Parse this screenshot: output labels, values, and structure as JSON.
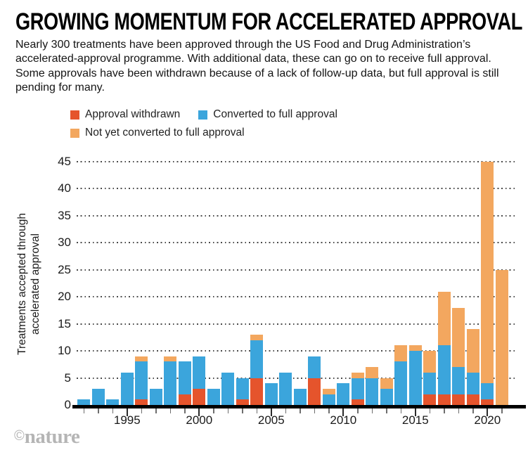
{
  "header": {
    "title": "GROWING MOMENTUM FOR ACCELERATED APPROVAL",
    "subtitle": "Nearly 300 treatments have been approved through the US Food and Drug Administration’s accelerated-approval programme. With additional data, these can go on to receive full approval. Some approvals have been withdrawn because of a lack of follow-up data, but full approval is still pending for many."
  },
  "footer": {
    "copyright_symbol": "©",
    "brand": "nature"
  },
  "chart_data": {
    "type": "bar",
    "stacked": true,
    "title": "GROWING MOMENTUM FOR ACCELERATED APPROVAL",
    "x": [
      1992,
      1993,
      1994,
      1995,
      1996,
      1997,
      1998,
      1999,
      2000,
      2001,
      2002,
      2003,
      2004,
      2005,
      2006,
      2007,
      2008,
      2009,
      2010,
      2011,
      2012,
      2013,
      2014,
      2015,
      2016,
      2017,
      2018,
      2019,
      2020,
      2021
    ],
    "series": [
      {
        "name": "Approval withdrawn",
        "color": "#E5542C",
        "values": [
          0,
          0,
          0,
          0,
          1,
          0,
          0,
          2,
          3,
          0,
          0,
          1,
          5,
          0,
          0,
          0,
          5,
          0,
          0,
          1,
          0,
          0,
          0,
          0,
          2,
          2,
          2,
          2,
          1,
          0
        ]
      },
      {
        "name": "Converted to full approval",
        "color": "#3BA5DC",
        "values": [
          1,
          3,
          1,
          6,
          7,
          3,
          8,
          6,
          6,
          3,
          6,
          4,
          7,
          4,
          6,
          3,
          4,
          2,
          4,
          4,
          5,
          3,
          8,
          10,
          4,
          9,
          5,
          4,
          3,
          0
        ]
      },
      {
        "name": "Not yet converted to full approval",
        "color": "#F3A75F",
        "values": [
          0,
          0,
          0,
          0,
          1,
          0,
          1,
          0,
          0,
          0,
          0,
          0,
          1,
          0,
          0,
          0,
          0,
          1,
          0,
          1,
          2,
          2,
          3,
          1,
          4,
          10,
          11,
          8,
          41,
          25
        ]
      }
    ],
    "ylabel": "Treatments accepted through accelerated approval",
    "ylabel_lines": [
      "Treatments accepted through",
      "accelerated approval"
    ],
    "yticks": [
      0,
      5,
      10,
      15,
      20,
      25,
      30,
      35,
      40,
      45
    ],
    "ylim": [
      0,
      45
    ],
    "xticks_labeled": [
      1995,
      2000,
      2005,
      2010,
      2015,
      2020
    ],
    "grid": "horizontal-dotted",
    "legend_position": "top-left"
  }
}
